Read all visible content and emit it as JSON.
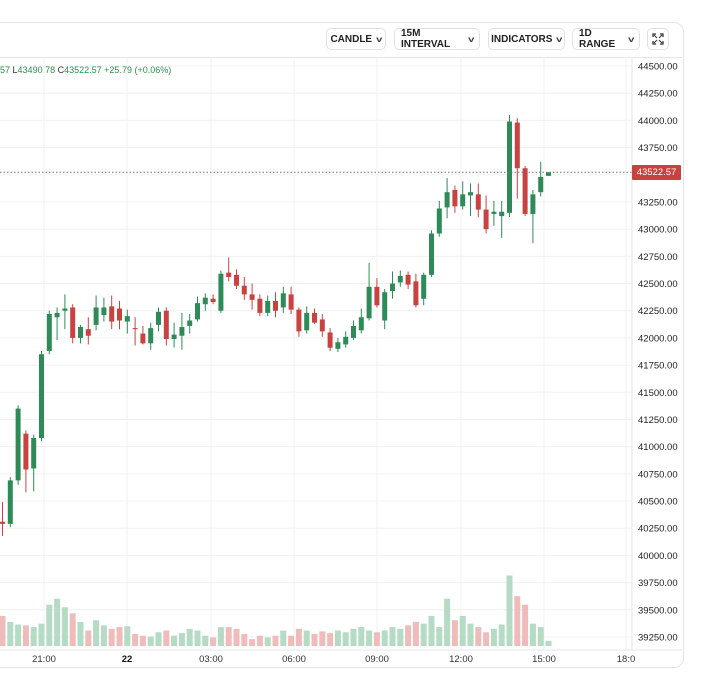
{
  "toolbar": {
    "candle_label": "CANDLE",
    "interval_label": "15M INTERVAL",
    "indicators_label": "INDICATORS",
    "range_label": "1D RANGE"
  },
  "ohlc": {
    "o_tail": "57",
    "l_key": "L",
    "l_value": "43490.78",
    "c_key": "C",
    "c_value": "43522.57",
    "change": "+25.79 (+0.06%)"
  },
  "last_price_label": "43522.57",
  "colors": {
    "up": "#2e8b57",
    "down": "#c8423f",
    "up_volume": "#b5dbc4",
    "down_volume": "#efbcbc",
    "grid": "#f0f0f2"
  },
  "chart_data": {
    "type": "candlestick",
    "title": "",
    "interval": "15M",
    "range": "1D",
    "ylim": [
      39125,
      44600
    ],
    "y_ticks": [
      "44500.00",
      "44250.00",
      "44000.00",
      "43750.00",
      "43500.00",
      "43250.00",
      "43000.00",
      "42750.00",
      "42500.00",
      "42250.00",
      "42000.00",
      "41750.00",
      "41500.00",
      "41250.00",
      "41000.00",
      "40750.00",
      "40500.00",
      "40250.00",
      "40000.00",
      "39750.00",
      "39500.00",
      "39250.00"
    ],
    "x_ticks": [
      "21:00",
      "22",
      "03:00",
      "06:00",
      "09:00",
      "12:00",
      "15:00",
      "18:0"
    ],
    "last_price": 43522.57,
    "candles": [
      [
        40310,
        40490,
        40180,
        40290
      ],
      [
        40290,
        40720,
        40260,
        40690
      ],
      [
        40690,
        41380,
        40650,
        41350
      ],
      [
        41120,
        41150,
        40580,
        40790
      ],
      [
        40800,
        41110,
        40590,
        41080
      ],
      [
        41080,
        41880,
        41050,
        41850
      ],
      [
        41880,
        42250,
        41850,
        42220
      ],
      [
        42190,
        42280,
        41980,
        42230
      ],
      [
        42250,
        42400,
        42080,
        42270
      ],
      [
        42280,
        42310,
        41950,
        42000
      ],
      [
        42000,
        42120,
        41950,
        42100
      ],
      [
        42080,
        42190,
        41940,
        42020
      ],
      [
        42120,
        42390,
        42070,
        42280
      ],
      [
        42210,
        42370,
        42150,
        42280
      ],
      [
        42290,
        42390,
        42080,
        42150
      ],
      [
        42270,
        42340,
        42080,
        42160
      ],
      [
        42150,
        42260,
        42040,
        42200
      ],
      [
        42090,
        42190,
        41930,
        42080
      ],
      [
        42040,
        42110,
        41940,
        41950
      ],
      [
        41950,
        42140,
        41890,
        42090
      ],
      [
        42120,
        42280,
        42060,
        42240
      ],
      [
        42250,
        42280,
        41930,
        41990
      ],
      [
        41990,
        42140,
        41910,
        42030
      ],
      [
        42020,
        42230,
        41890,
        42100
      ],
      [
        42110,
        42220,
        42040,
        42160
      ],
      [
        42170,
        42380,
        42150,
        42320
      ],
      [
        42310,
        42410,
        42250,
        42370
      ],
      [
        42360,
        42400,
        42310,
        42330
      ],
      [
        42250,
        42620,
        42230,
        42590
      ],
      [
        42600,
        42740,
        42520,
        42560
      ],
      [
        42580,
        42630,
        42450,
        42480
      ],
      [
        42480,
        42560,
        42350,
        42400
      ],
      [
        42400,
        42500,
        42260,
        42350
      ],
      [
        42360,
        42400,
        42200,
        42230
      ],
      [
        42230,
        42390,
        42200,
        42340
      ],
      [
        42340,
        42420,
        42190,
        42250
      ],
      [
        42280,
        42470,
        42230,
        42410
      ],
      [
        42400,
        42470,
        42220,
        42260
      ],
      [
        42260,
        42280,
        42010,
        42060
      ],
      [
        42070,
        42290,
        42040,
        42230
      ],
      [
        42230,
        42270,
        42130,
        42140
      ],
      [
        42170,
        42220,
        42010,
        42060
      ],
      [
        42050,
        42090,
        41880,
        41910
      ],
      [
        41900,
        42000,
        41870,
        41960
      ],
      [
        41940,
        42060,
        41910,
        42010
      ],
      [
        42000,
        42160,
        41980,
        42110
      ],
      [
        42070,
        42270,
        42040,
        42190
      ],
      [
        42180,
        42690,
        42160,
        42470
      ],
      [
        42470,
        42550,
        42280,
        42300
      ],
      [
        42160,
        42450,
        42080,
        42420
      ],
      [
        42430,
        42610,
        42360,
        42500
      ],
      [
        42510,
        42620,
        42470,
        42570
      ],
      [
        42580,
        42610,
        42450,
        42490
      ],
      [
        42520,
        42590,
        42280,
        42300
      ],
      [
        42360,
        42600,
        42300,
        42580
      ],
      [
        42580,
        42990,
        42560,
        42960
      ],
      [
        42960,
        43260,
        42930,
        43190
      ],
      [
        43200,
        43470,
        43100,
        43340
      ],
      [
        43360,
        43400,
        43150,
        43210
      ],
      [
        43210,
        43440,
        43180,
        43320
      ],
      [
        43310,
        43420,
        43120,
        43340
      ],
      [
        43320,
        43420,
        43110,
        43180
      ],
      [
        43180,
        43310,
        42960,
        43000
      ],
      [
        43140,
        43260,
        43030,
        43160
      ],
      [
        43120,
        43260,
        42920,
        43160
      ],
      [
        43150,
        44050,
        43110,
        43990
      ],
      [
        43980,
        44020,
        43280,
        43560
      ],
      [
        43560,
        43580,
        43120,
        43140
      ],
      [
        43140,
        43360,
        42870,
        43320
      ],
      [
        43340,
        43620,
        43300,
        43480
      ],
      [
        43490,
        43523,
        43490,
        43522.57
      ]
    ],
    "volume": [
      35,
      28,
      25,
      24,
      22,
      26,
      48,
      55,
      45,
      38,
      28,
      18,
      30,
      24,
      20,
      22,
      23,
      14,
      12,
      11,
      16,
      18,
      12,
      15,
      20,
      18,
      12,
      10,
      22,
      22,
      20,
      14,
      8,
      12,
      10,
      12,
      18,
      12,
      20,
      18,
      14,
      17,
      15,
      18,
      16,
      20,
      22,
      18,
      16,
      18,
      22,
      20,
      24,
      28,
      26,
      35,
      22,
      55,
      30,
      35,
      26,
      22,
      16,
      20,
      25,
      82,
      58,
      48,
      26,
      22,
      6
    ]
  }
}
